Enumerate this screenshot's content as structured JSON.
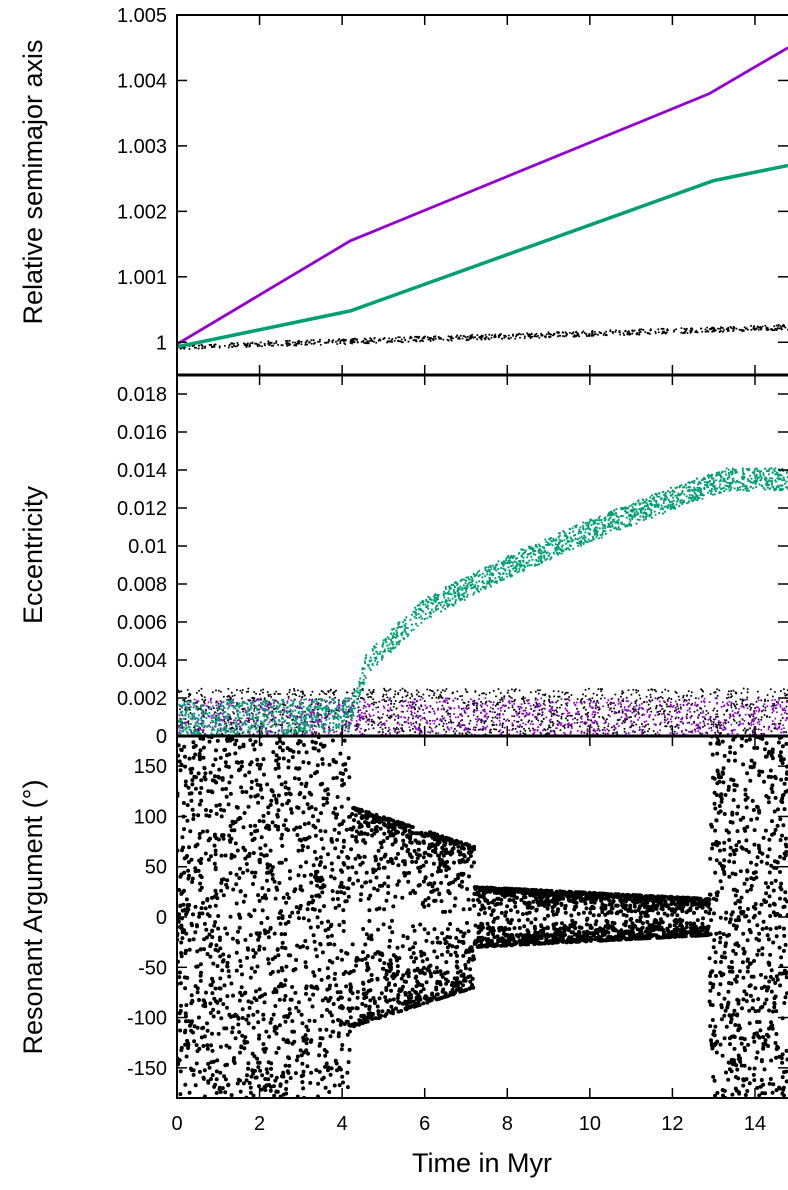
{
  "colors": {
    "black": "#000000",
    "purple": "#9400d3",
    "green": "#009e73"
  },
  "chart_data": [
    {
      "type": "line",
      "panel": "top",
      "ylabel": "Relative semimajor axis",
      "xlim": [
        0,
        14.8
      ],
      "ylim": [
        0.9995,
        1.005
      ],
      "yticks": [
        1,
        1.001,
        1.002,
        1.003,
        1.004,
        1.005
      ],
      "ytick_labels": [
        "1",
        "1.001",
        "1.002",
        "1.003",
        "1.004",
        "1.005"
      ],
      "series": [
        {
          "color": "#9400d3",
          "x": [
            0,
            4.2,
            12.9,
            14.8
          ],
          "y": [
            0.99997,
            1.00155,
            1.0038,
            1.0045
          ]
        },
        {
          "color": "#009e73",
          "x": [
            0,
            4.2,
            13.0,
            14.8
          ],
          "y": [
            0.99993,
            1.00048,
            1.00247,
            1.0027
          ]
        },
        {
          "color": "#000000",
          "x": [
            0,
            14.8
          ],
          "y": [
            0.99993,
            1.00023
          ]
        }
      ]
    },
    {
      "type": "scatter",
      "panel": "middle",
      "ylabel": "Eccentricity",
      "xlim": [
        0,
        14.8
      ],
      "ylim": [
        0,
        0.019
      ],
      "yticks": [
        0,
        0.002,
        0.004,
        0.006,
        0.008,
        0.01,
        0.012,
        0.014,
        0.016,
        0.018
      ],
      "ytick_labels": [
        "0",
        "0.002",
        "0.004",
        "0.006",
        "0.008",
        "0.01",
        "0.012",
        "0.014",
        "0.016",
        "0.018"
      ],
      "series": [
        {
          "color": "#000000",
          "band": [
            0.0,
            0.0025
          ],
          "x_range": [
            0,
            14.8
          ]
        },
        {
          "color": "#9400d3",
          "band": [
            0.0,
            0.002
          ],
          "x_range": [
            0,
            14.8
          ]
        },
        {
          "color": "#009e73",
          "x": [
            0,
            4.2,
            4.6,
            6,
            8,
            10,
            12,
            13.3,
            14.8
          ],
          "y": [
            0.0009,
            0.0011,
            0.0038,
            0.0067,
            0.0089,
            0.0108,
            0.0125,
            0.0135,
            0.0135
          ]
        }
      ]
    },
    {
      "type": "scatter",
      "panel": "bottom",
      "ylabel": "Resonant Argument (°)",
      "xlabel": "Time in Myr",
      "xlim": [
        0,
        14.8
      ],
      "ylim": [
        -180,
        180
      ],
      "xticks": [
        0,
        2,
        4,
        6,
        8,
        10,
        12,
        14
      ],
      "xtick_labels": [
        "0",
        "2",
        "4",
        "6",
        "8",
        "10",
        "12",
        "14"
      ],
      "yticks": [
        -150,
        -100,
        -50,
        0,
        50,
        100,
        150
      ],
      "ytick_labels": [
        "-150",
        "-100",
        "-50",
        "0",
        "50",
        "100",
        "150"
      ],
      "phases": [
        {
          "x_range": [
            0,
            4.2
          ],
          "amplitude": 180
        },
        {
          "x_range": [
            4.2,
            7.2
          ],
          "amplitude_start": 110,
          "amplitude_end": 70
        },
        {
          "x_range": [
            7.2,
            12.9
          ],
          "amplitude_start": 30,
          "amplitude_end": 18
        },
        {
          "x_range": [
            12.9,
            14.8
          ],
          "amplitude": 180
        }
      ]
    }
  ]
}
